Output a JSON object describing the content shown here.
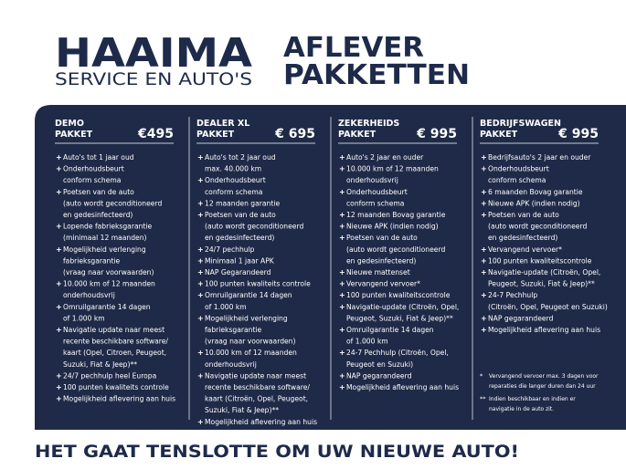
{
  "logo": {
    "name": "HAAIMA",
    "tagline": "SERVICE EN AUTO'S"
  },
  "heading": [
    "AFLEVER",
    "PAKKETTEN"
  ],
  "columns": [
    {
      "title": [
        "DEMO",
        "PAKKET"
      ],
      "price": "€495",
      "items": [
        [
          "Auto's tot 1 jaar oud"
        ],
        [
          "Onderhoudsbeurt",
          "conform schema"
        ],
        [
          "Poetsen van de auto",
          "(auto wordt geconditioneerd",
          "en gedesinfecteerd)"
        ],
        [
          "Lopende fabrieksgarantie",
          "(minimaal 12 maanden)"
        ],
        [
          "Mogelijkheid verlenging",
          "fabrieksgarantie",
          "(vraag naar voorwaarden)"
        ],
        [
          "10.000 km of 12 maanden",
          "onderhoudsvrij"
        ],
        [
          "Omruilgarantie 14 dagen",
          "of 1.000 km"
        ],
        [
          "Navigatie update naar meest",
          "recente beschikbare software/",
          "kaart (Opel, Citroen, Peugeot,",
          "Suzuki, Fiat & Jeep)**"
        ],
        [
          "24/7 pechhulp heel Europa"
        ],
        [
          "100 punten kwaliteits controle"
        ],
        [
          "Mogelijkheid aflevering aan huis"
        ]
      ]
    },
    {
      "title": [
        "DEALER XL",
        "PAKKET"
      ],
      "price": "€ 695",
      "items": [
        [
          "Auto's tot 2 jaar oud",
          "max. 40.000 km"
        ],
        [
          "Onderhoudsbeurt",
          "conform schema"
        ],
        [
          "12 maanden garantie"
        ],
        [
          "Poetsen van de auto",
          "(auto wordt geconditioneerd",
          "en gedesinfecteerd)"
        ],
        [
          "24/7 pechhulp"
        ],
        [
          "Minimaal 1 jaar APK"
        ],
        [
          "NAP Gegarandeerd"
        ],
        [
          "100 punten kwaliteits controle"
        ],
        [
          "Omruilgarantie 14 dagen",
          "of 1.000 km"
        ],
        [
          "Mogelijkheid verlenging",
          "fabrieksgarantie",
          "(vraag naar voorwaarden)"
        ],
        [
          "10.000 km of 12 maanden",
          "onderhoudsvrij"
        ],
        [
          "Navigatie update naar meest",
          "recente beschikbare software/",
          "kaart (Citroën, Opel, Peugeot,",
          "Suzuki, Fiat & Jeep)**"
        ],
        [
          "Mogelijkheid aflevering aan huis"
        ]
      ]
    },
    {
      "title": [
        "ZEKERHEIDS",
        "PAKKET"
      ],
      "price": "€ 995",
      "items": [
        [
          "Auto's 2 jaar en ouder"
        ],
        [
          "10.000 km of 12 maanden",
          "onderhoudsvrij"
        ],
        [
          "Onderhoudsbeurt",
          "conform schema"
        ],
        [
          "12 maanden Bovag garantie"
        ],
        [
          "Nieuwe APK (indien nodig)"
        ],
        [
          "Poetsen van de auto",
          "(auto wordt geconditioneerd",
          "en gedesinfecteerd)"
        ],
        [
          "Nieuwe mattenset"
        ],
        [
          "Vervangend vervoer*"
        ],
        [
          "100 punten kwaliteitscontrole"
        ],
        [
          "Navigatie-update (Citroën, Opel,",
          "Peugeot, Suzuki, Fiat & Jeep)**"
        ],
        [
          "Omruilgarantie 14 dagen",
          "of 1.000 km"
        ],
        [
          "24-7 Pechhulp (Citroën, Opel,",
          "Peugeot en Suzuki)"
        ],
        [
          "NAP gegarandeerd"
        ],
        [
          "Mogelijkheid aflevering aan huis"
        ]
      ]
    },
    {
      "title": [
        "BEDRIJFSWAGEN",
        "PAKKET"
      ],
      "price": "€ 995",
      "items": [
        [
          "Bedrijfsauto's 2 jaar en ouder"
        ],
        [
          "Onderhoudsbeurt",
          "conform schema"
        ],
        [
          "6 maanden Bovag garantie"
        ],
        [
          "Nieuwe APK (indien nodig)"
        ],
        [
          "Poetsen van de auto",
          "(auto wordt geconditioneerd",
          "en gedesinfecteerd)"
        ],
        [
          "Vervangend vervoer*"
        ],
        [
          "100 punten kwaliteitscontrole"
        ],
        [
          "Navigatie-update (Citroën, Opel,",
          "Peugeot, Suzuki, Fiat & Jeep)**"
        ],
        [
          "24-7 Pechhulp",
          "(Citroën, Opel, Peugeot en Suzuki)"
        ],
        [
          "NAP gegarandeerd"
        ],
        [
          "Mogelijkheid aflevering aan huis"
        ]
      ]
    }
  ],
  "footnotes": [
    {
      "mark": "*",
      "lines": [
        "Vervangend vervoer max. 3 dagen voor",
        "reparaties die langer duren dan 24 uur"
      ]
    },
    {
      "mark": "**",
      "lines": [
        "Indien beschikbaar en indien er",
        "navigatie in de auto zit."
      ]
    }
  ],
  "slogan": "HET GAAT TENSLOTTE OM UW NIEUWE AUTO!"
}
